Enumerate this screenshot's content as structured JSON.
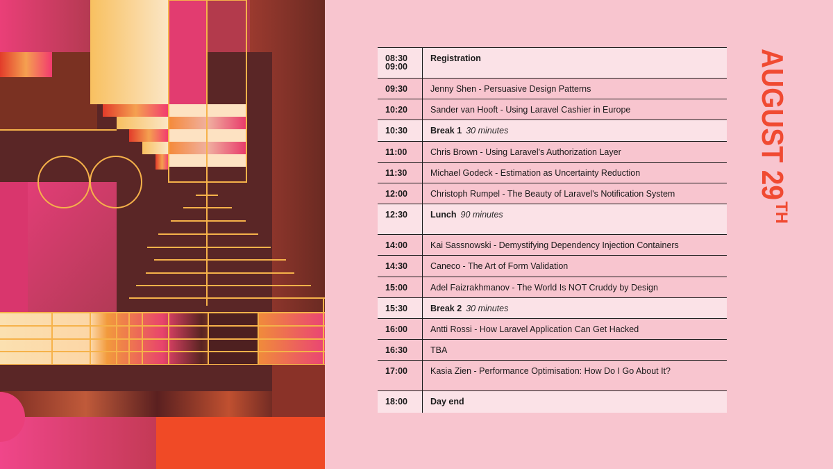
{
  "date": {
    "main": "AUGUST 29",
    "suffix": "TH"
  },
  "schedule": [
    {
      "time": "08:30",
      "time2": "09:00",
      "title": "Registration",
      "note": "",
      "bold": true,
      "highlight": true,
      "tall": true
    },
    {
      "time": "09:30",
      "time2": "",
      "title": "Jenny Shen - Persuasive Design Patterns",
      "note": "",
      "bold": false,
      "highlight": false,
      "tall": false
    },
    {
      "time": "10:20",
      "time2": "",
      "title": "Sander van Hooft - Using Laravel Cashier in Europe",
      "note": "",
      "bold": false,
      "highlight": false,
      "tall": false
    },
    {
      "time": "10:30",
      "time2": "",
      "title": "Break 1",
      "note": "30 minutes",
      "bold": true,
      "highlight": true,
      "tall": false
    },
    {
      "time": "11:00",
      "time2": "",
      "title": "Chris Brown - Using Laravel's Authorization Layer",
      "note": "",
      "bold": false,
      "highlight": false,
      "tall": false
    },
    {
      "time": "11:30",
      "time2": "",
      "title": "Michael Godeck - Estimation as Uncertainty Reduction",
      "note": "",
      "bold": false,
      "highlight": false,
      "tall": false
    },
    {
      "time": "12:00",
      "time2": "",
      "title": "Christoph Rumpel - The Beauty of Laravel's Notification System",
      "note": "",
      "bold": false,
      "highlight": false,
      "tall": false
    },
    {
      "time": "12:30",
      "time2": "",
      "title": "Lunch",
      "note": "90 minutes",
      "bold": true,
      "highlight": true,
      "tall": true
    },
    {
      "time": "14:00",
      "time2": "",
      "title": "Kai Sassnowski - Demystifying Dependency Injection Containers",
      "note": "",
      "bold": false,
      "highlight": false,
      "tall": false
    },
    {
      "time": "14:30",
      "time2": "",
      "title": "Caneco - The Art of Form Validation",
      "note": "",
      "bold": false,
      "highlight": false,
      "tall": false
    },
    {
      "time": "15:00",
      "time2": "",
      "title": "Adel Faizrakhmanov - The World Is NOT Cruddy by Design",
      "note": "",
      "bold": false,
      "highlight": false,
      "tall": false
    },
    {
      "time": "15:30",
      "time2": "",
      "title": "Break 2",
      "note": "30 minutes",
      "bold": true,
      "highlight": true,
      "tall": false
    },
    {
      "time": "16:00",
      "time2": "",
      "title": "Antti Rossi - How Laravel Application Can Get Hacked",
      "note": "",
      "bold": false,
      "highlight": false,
      "tall": false
    },
    {
      "time": "16:30",
      "time2": "",
      "title": "TBA",
      "note": "",
      "bold": false,
      "highlight": false,
      "tall": false
    },
    {
      "time": "17:00",
      "time2": "",
      "title": "Kasia Zien - Performance Optimisation:  How Do I Go About It?",
      "note": "",
      "bold": false,
      "highlight": false,
      "tall": true
    },
    {
      "time": "18:00",
      "time2": "",
      "title": "Day end",
      "note": "",
      "bold": true,
      "highlight": true,
      "tall": false,
      "last": true
    }
  ],
  "colors": {
    "background": "#f8c5cf",
    "row_highlight": "#fbe2e7",
    "accent": "#f04a32",
    "rule": "#1c1c1c",
    "art_dark": "#4e2323",
    "art_pink": "#e8427a",
    "art_orange": "#f0552a",
    "art_gold": "#f6b24a"
  }
}
